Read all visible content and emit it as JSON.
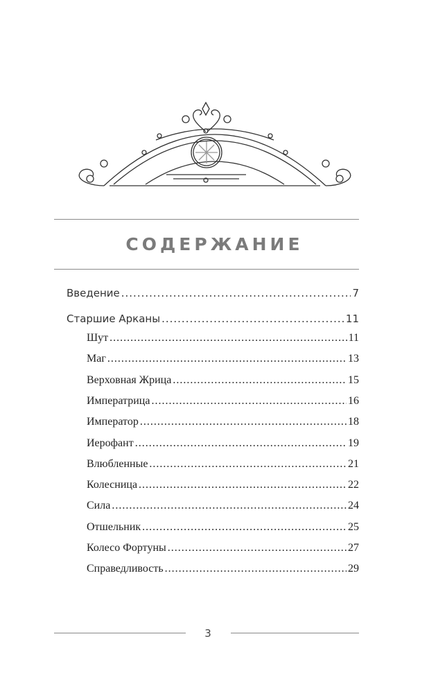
{
  "heading": "СОДЕРЖАНИЕ",
  "entries": [
    {
      "label": "Введение",
      "page": "7"
    },
    {
      "label": "Старшие Арканы",
      "page": "11"
    }
  ],
  "subentries": [
    {
      "label": "Шут",
      "page": "11"
    },
    {
      "label": "Маг",
      "page": "13"
    },
    {
      "label": "Верховная Жрица",
      "page": "15"
    },
    {
      "label": "Императрица",
      "page": "16"
    },
    {
      "label": "Император",
      "page": "18"
    },
    {
      "label": "Иерофант",
      "page": "19"
    },
    {
      "label": "Влюбленные",
      "page": "21"
    },
    {
      "label": "Колесница",
      "page": "22"
    },
    {
      "label": "Сила",
      "page": "24"
    },
    {
      "label": "Отшельник",
      "page": "25"
    },
    {
      "label": "Колесо Фортуны",
      "page": "27"
    },
    {
      "label": "Справедливость",
      "page": "29"
    }
  ],
  "page_number": "3"
}
